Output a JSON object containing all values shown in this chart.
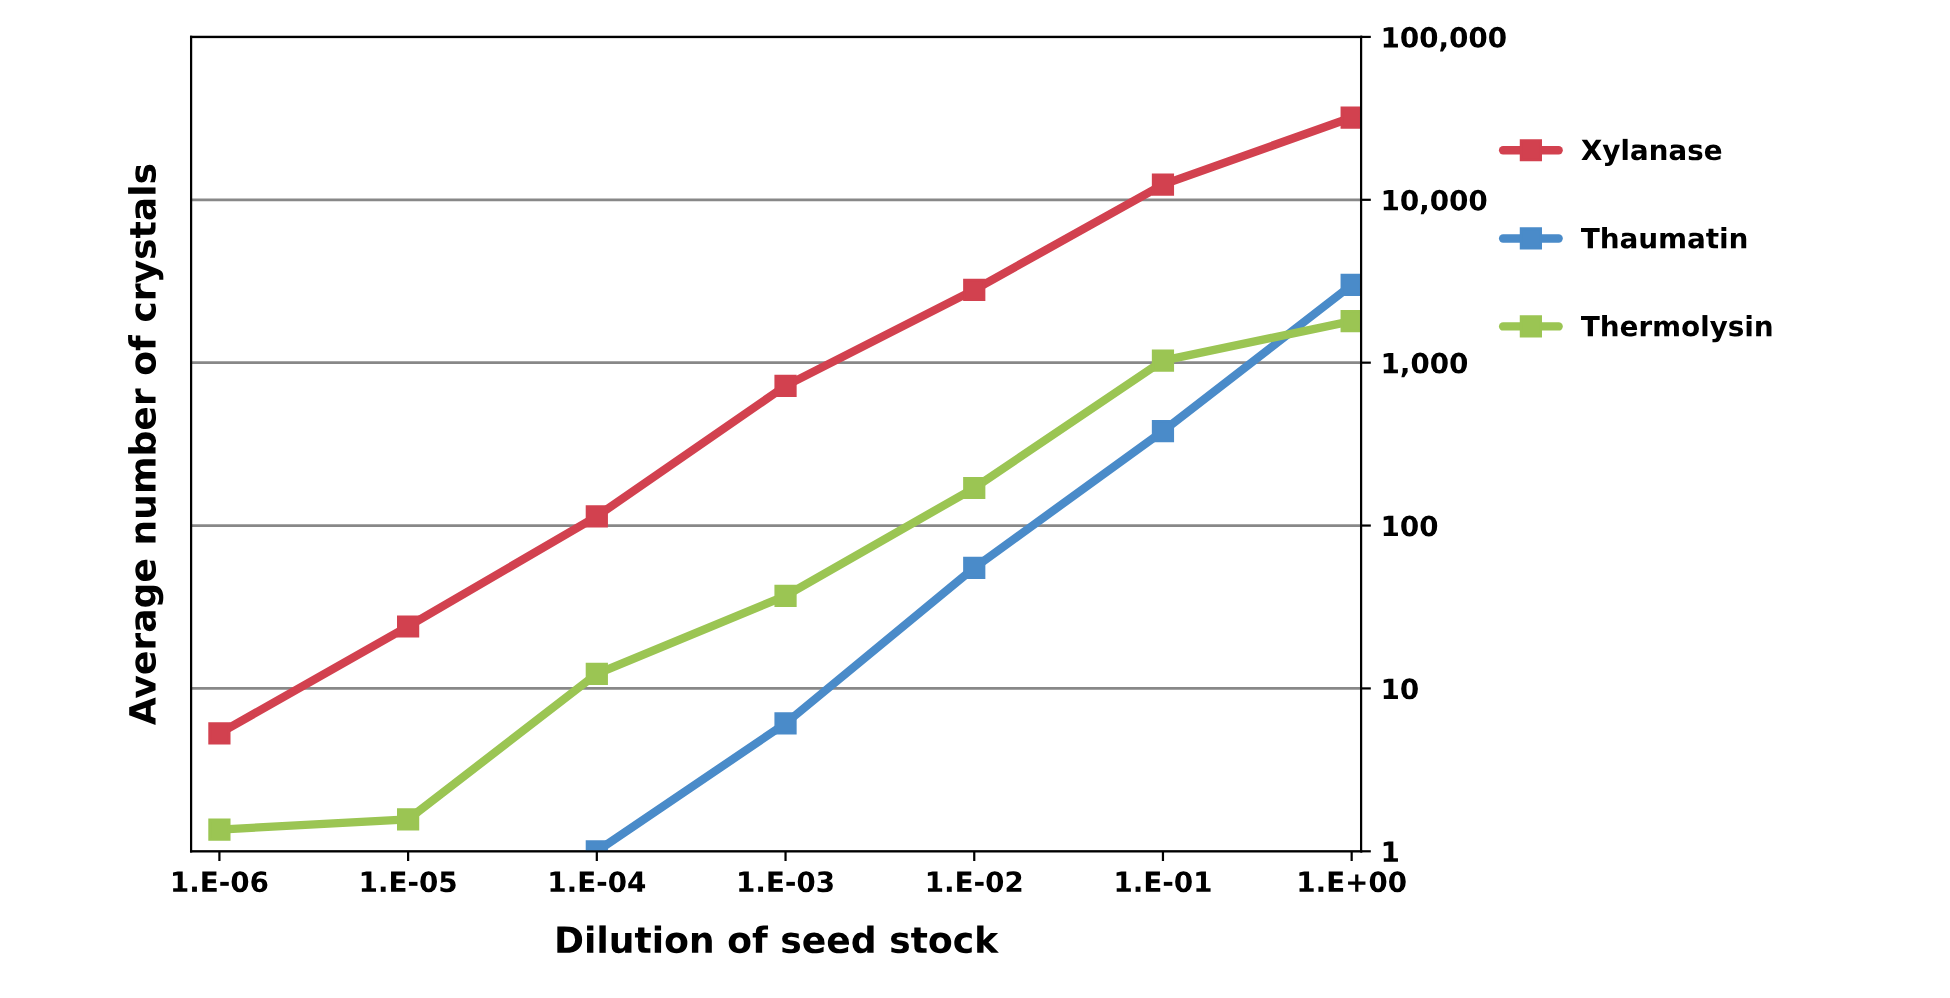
{
  "chart_data": {
    "type": "line",
    "xlabel": "Dilution of seed stock",
    "ylabel": "Average number of crystals",
    "categories": [
      "1.E-06",
      "1.E-05",
      "1.E-04",
      "1.E-03",
      "1.E-02",
      "1.E-01",
      "1.E+00"
    ],
    "series": [
      {
        "name": "Xylanase",
        "color": "#d2414f",
        "values": [
          5.3,
          24,
          114,
          720,
          2800,
          12400,
          32000
        ]
      },
      {
        "name": "Thaumatin",
        "color": "#4a8bc9",
        "values": [
          null,
          null,
          1,
          6.1,
          55,
          380,
          3000
        ]
      },
      {
        "name": "Thermolysin",
        "color": "#9bc553",
        "values": [
          1.36,
          1.57,
          12.3,
          37,
          170,
          1030,
          1800
        ]
      }
    ],
    "log": true,
    "ylim": [
      1,
      100000
    ],
    "yticks": [
      {
        "value": 1,
        "label": "1"
      },
      {
        "value": 10,
        "label": "10"
      },
      {
        "value": 100,
        "label": "100"
      },
      {
        "value": 1000,
        "label": "1,000"
      },
      {
        "value": 10000,
        "label": "10,000"
      },
      {
        "value": 100000,
        "label": "100,000"
      }
    ],
    "grid": "y",
    "legend": "right",
    "marker": "square",
    "line_style": "solid"
  }
}
